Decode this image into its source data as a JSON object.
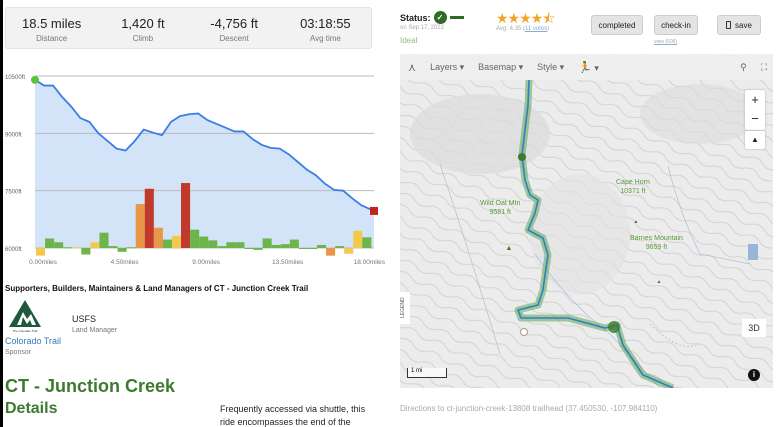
{
  "stats": [
    {
      "value": "18.5 miles",
      "label": "Distance"
    },
    {
      "value": "1,420 ft",
      "label": "Climb"
    },
    {
      "value": "-4,756 ft",
      "label": "Descent"
    },
    {
      "value": "03:18:55",
      "label": "Avg time"
    }
  ],
  "chart_data": {
    "type": "area",
    "xlabel": "",
    "ylabel": "",
    "x_ticks": [
      "0.00miles",
      "4.50miles",
      "9.00miles",
      "13.50miles",
      "18.00miles"
    ],
    "x_tick_values": [
      0,
      4.5,
      9,
      13.5,
      18
    ],
    "y_ticks": [
      "6000ft",
      "7500ft",
      "9000ft",
      "10500ft"
    ],
    "y_tick_values": [
      6000,
      7500,
      9000,
      10500
    ],
    "xlim": [
      0,
      18.7
    ],
    "ylim": [
      6000,
      10500
    ],
    "grid": true,
    "elevation": {
      "x": [
        0,
        0.5,
        1,
        1.5,
        2,
        2.5,
        3,
        3.5,
        4,
        4.5,
        5,
        5.5,
        6,
        6.5,
        7,
        7.5,
        8,
        8.5,
        9,
        9.5,
        10,
        10.5,
        11,
        11.5,
        12,
        12.5,
        13,
        13.5,
        14,
        14.5,
        15,
        15.5,
        16,
        16.5,
        17,
        17.5,
        18,
        18.7
      ],
      "y": [
        10400,
        10250,
        10250,
        9950,
        9700,
        9400,
        9300,
        9000,
        8800,
        8600,
        8550,
        8800,
        9100,
        9020,
        8950,
        9300,
        9450,
        9500,
        9520,
        9350,
        9250,
        9150,
        9050,
        9050,
        8850,
        8700,
        8620,
        8600,
        8450,
        8250,
        8050,
        7900,
        7680,
        7520,
        7500,
        7300,
        7120,
        6970
      ],
      "color": "#3b7ee6",
      "fill": "#d3e3f8"
    },
    "grade_bars": {
      "x": [
        0,
        0.5,
        1,
        1.5,
        2,
        2.5,
        3,
        3.5,
        4,
        4.5,
        5,
        5.5,
        6,
        6.5,
        7,
        7.5,
        8,
        8.5,
        9,
        9.5,
        10,
        10.5,
        11,
        11.5,
        12,
        12.5,
        13,
        13.5,
        14,
        14.5,
        15,
        15.5,
        16,
        16.5,
        17,
        17.5,
        18
      ],
      "y": [
        5800,
        6250,
        6150,
        6020,
        6020,
        5830,
        6150,
        6400,
        6050,
        5900,
        6020,
        7150,
        7550,
        6530,
        6220,
        6320,
        7700,
        6480,
        6300,
        6200,
        6050,
        6150,
        6150,
        6000,
        5950,
        6250,
        6080,
        6100,
        6220,
        6000,
        6000,
        6080,
        5800,
        6050,
        5850,
        6450,
        6280
      ],
      "colors": [
        "#f2c94c",
        "#6cb54a",
        "#6cb54a",
        "#6cb54a",
        "#f2c94c",
        "#6cb54a",
        "#f2c94c",
        "#6cb54a",
        "#6cb54a",
        "#6cb54a",
        "#6cb54a",
        "#e8964a",
        "#c0392b",
        "#e8964a",
        "#6cb54a",
        "#f2c94c",
        "#c0392b",
        "#6cb54a",
        "#6cb54a",
        "#6cb54a",
        "#6cb54a",
        "#6cb54a",
        "#6cb54a",
        "#6cb54a",
        "#6cb54a",
        "#6cb54a",
        "#6cb54a",
        "#6cb54a",
        "#6cb54a",
        "#6cb54a",
        "#6cb54a",
        "#6cb54a",
        "#e8964a",
        "#6cb54a",
        "#f2c94c",
        "#f2c94c",
        "#6cb54a"
      ]
    },
    "start_color": "#5ac43a",
    "end_color": "#c0241b"
  },
  "supporters": {
    "title": "Supporters, Builders, Maintainers & Land Managers of CT - Junction Creek Trail",
    "logo_text": "The Colorado Trail",
    "sponsor_name": "Colorado Trail",
    "sponsor_role": "Sponsor",
    "manager_name": "USFS",
    "manager_role": "Land Manager"
  },
  "trail": {
    "title": "CT - Junction Creek",
    "details_heading": "Details",
    "description": "Frequently accessed via shuttle, this ride encompasses the end of the"
  },
  "status": {
    "label": "Status:",
    "date": "on Sep 17, 2022",
    "condition": "Ideal",
    "icon": "check-circle-icon"
  },
  "rating": {
    "stars": "★★★★⯪",
    "value": 4.35,
    "avg_text": "Avg: 4.35 (",
    "votes": "11 votes",
    "close": ")"
  },
  "buttons": {
    "completed": "completed",
    "checkin": "check-in",
    "view": "view (606)",
    "save": "save"
  },
  "map": {
    "toolbar": {
      "layers": "Layers ▾",
      "basemap": "Basemap ▾",
      "style": "Style ▾",
      "activity": "▾"
    },
    "zoom_in": "+",
    "zoom_out": "−",
    "compass": "▲",
    "legend": "LEGEND",
    "scale": "1 mi",
    "btn3d": "3D",
    "info": "i",
    "peaks": [
      {
        "name": "Wild Oat Mtn",
        "elev": "9581 ft"
      },
      {
        "name": "Cape Horn",
        "elev": "10371 ft"
      },
      {
        "name": "Barnes Mountain",
        "elev": "9659 ft"
      }
    ],
    "route_color": "#2f7fc1",
    "buffer_color": "#5fa85a"
  },
  "directions": "Directions to ct-junction-creek-13808 trailhead (37.450530, -107.984110)"
}
